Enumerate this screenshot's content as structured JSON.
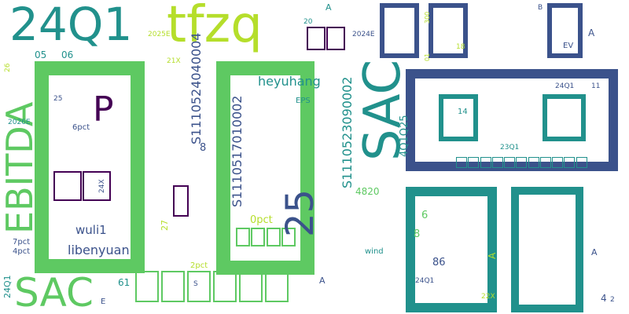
{
  "cloud": {
    "background": "#ffffff",
    "palette": [
      "#440154",
      "#3b528b",
      "#21918c",
      "#2db27d",
      "#5ec962",
      "#b5de2b"
    ],
    "words": [
      {
        "id": "w-24q1",
        "text": "24Q1",
        "color": "#21918c"
      },
      {
        "id": "w-tfzq",
        "text": "tfzq",
        "color": "#b5de2b"
      },
      {
        "id": "w-sac-bottom",
        "text": "SAC",
        "color": "#5ec962"
      },
      {
        "id": "w-sac-vertical",
        "text": "SAC",
        "color": "#21918c"
      },
      {
        "id": "w-ebitda",
        "text": "EBITDA",
        "color": "#5ec962"
      },
      {
        "id": "w-p",
        "text": "P",
        "color": "#440154"
      },
      {
        "id": "w-25",
        "text": "25",
        "color": "#3b528b"
      },
      {
        "id": "w-heyuhang",
        "text": "heyuhang",
        "color": "#21918c"
      },
      {
        "id": "w-libenyuan",
        "text": "libenyuan",
        "color": "#3b528b"
      },
      {
        "id": "w-wuli1",
        "text": "wuli1",
        "color": "#3b528b"
      },
      {
        "id": "w-code-s1110524",
        "text": "S1110524040004",
        "color": "#3b528b"
      },
      {
        "id": "w-code-s1110517",
        "text": "S1110517010002",
        "color": "#3b528b"
      },
      {
        "id": "w-code-s1110523",
        "text": "S1110523090002",
        "color": "#21918c"
      },
      {
        "id": "w-4q1q25",
        "text": "4Q1Q25",
        "color": "#21918c"
      },
      {
        "id": "w-0pct",
        "text": "0pct",
        "color": "#b5de2b"
      },
      {
        "id": "w-6pct",
        "text": "6pct",
        "color": "#3b528b"
      },
      {
        "id": "w-7pct",
        "text": "7pct",
        "color": "#3b528b"
      },
      {
        "id": "w-4pct",
        "text": "4pct",
        "color": "#3b528b"
      },
      {
        "id": "w-2pct",
        "text": "2pct",
        "color": "#b5de2b"
      },
      {
        "id": "w-eps",
        "text": "EPS",
        "color": "#21918c"
      },
      {
        "id": "w-wind",
        "text": "wind",
        "color": "#21918c"
      },
      {
        "id": "w-ev",
        "text": "EV",
        "color": "#3b528b"
      },
      {
        "id": "w-b",
        "text": "B",
        "color": "#3b528b"
      },
      {
        "id": "w-e",
        "text": "E",
        "color": "#3b528b"
      },
      {
        "id": "w-s",
        "text": "S",
        "color": "#3b528b"
      },
      {
        "id": "w-2025e",
        "text": "2025E",
        "color": "#b5de2b"
      },
      {
        "id": "w-2024e",
        "text": "2024E",
        "color": "#3b528b"
      },
      {
        "id": "w-2026e",
        "text": "2026E",
        "color": "#21918c"
      },
      {
        "id": "w-23q1",
        "text": "23Q1",
        "color": "#21918c"
      },
      {
        "id": "w-24x",
        "text": "24X",
        "color": "#3b528b"
      },
      {
        "id": "w-21x",
        "text": "21X",
        "color": "#b5de2b"
      },
      {
        "id": "w-22x",
        "text": "22X",
        "color": "#b5de2b"
      },
      {
        "id": "w-05",
        "text": "05",
        "color": "#21918c"
      },
      {
        "id": "w-06",
        "text": "06",
        "color": "#21918c"
      },
      {
        "id": "w-14",
        "text": "14",
        "color": "#21918c"
      },
      {
        "id": "w-18",
        "text": "18",
        "color": "#b5de2b"
      },
      {
        "id": "w-20",
        "text": "20",
        "color": "#21918c"
      },
      {
        "id": "w-8",
        "text": "8",
        "color": "#3b528b"
      },
      {
        "id": "w-86",
        "text": "86",
        "color": "#3b528b"
      },
      {
        "id": "w-4820",
        "text": "4820",
        "color": "#5ec962"
      },
      {
        "id": "w-61",
        "text": "61",
        "color": "#21918c"
      },
      {
        "id": "w-4",
        "text": "4",
        "color": "#3b528b"
      },
      {
        "id": "w-2",
        "text": "2",
        "color": "#3b528b"
      },
      {
        "id": "w-11",
        "text": "11",
        "color": "#3b528b"
      },
      {
        "id": "w-27",
        "text": "27",
        "color": "#b5de2b"
      },
      {
        "id": "w-300",
        "text": "300",
        "color": "#b5de2b"
      },
      {
        "id": "w-8b",
        "text": "8",
        "color": "#5ec962"
      },
      {
        "id": "w-6",
        "text": "6",
        "color": "#5ec962"
      },
      {
        "id": "w-a1",
        "text": "A",
        "color": "#3b528b"
      },
      {
        "id": "w-a2",
        "text": "A",
        "color": "#21918c"
      },
      {
        "id": "w-a3",
        "text": "A",
        "color": "#3b528b"
      },
      {
        "id": "w-a4",
        "text": "A",
        "color": "#b5de2b"
      },
      {
        "id": "w-a5",
        "text": "A",
        "color": "#3b528b"
      },
      {
        "id": "w-24q1-small",
        "text": "24Q1",
        "color": "#3b528b"
      },
      {
        "id": "w-24q1-small2",
        "text": "24Q1",
        "color": "#3b528b"
      },
      {
        "id": "w-24q1-left",
        "text": "24Q1",
        "color": "#21918c"
      },
      {
        "id": "w-26",
        "text": "26",
        "color": "#b5de2b"
      },
      {
        "id": "w-25b",
        "text": "25",
        "color": "#3b528b"
      },
      {
        "id": "w-01",
        "text": "01",
        "color": "#b5de2b"
      }
    ]
  }
}
